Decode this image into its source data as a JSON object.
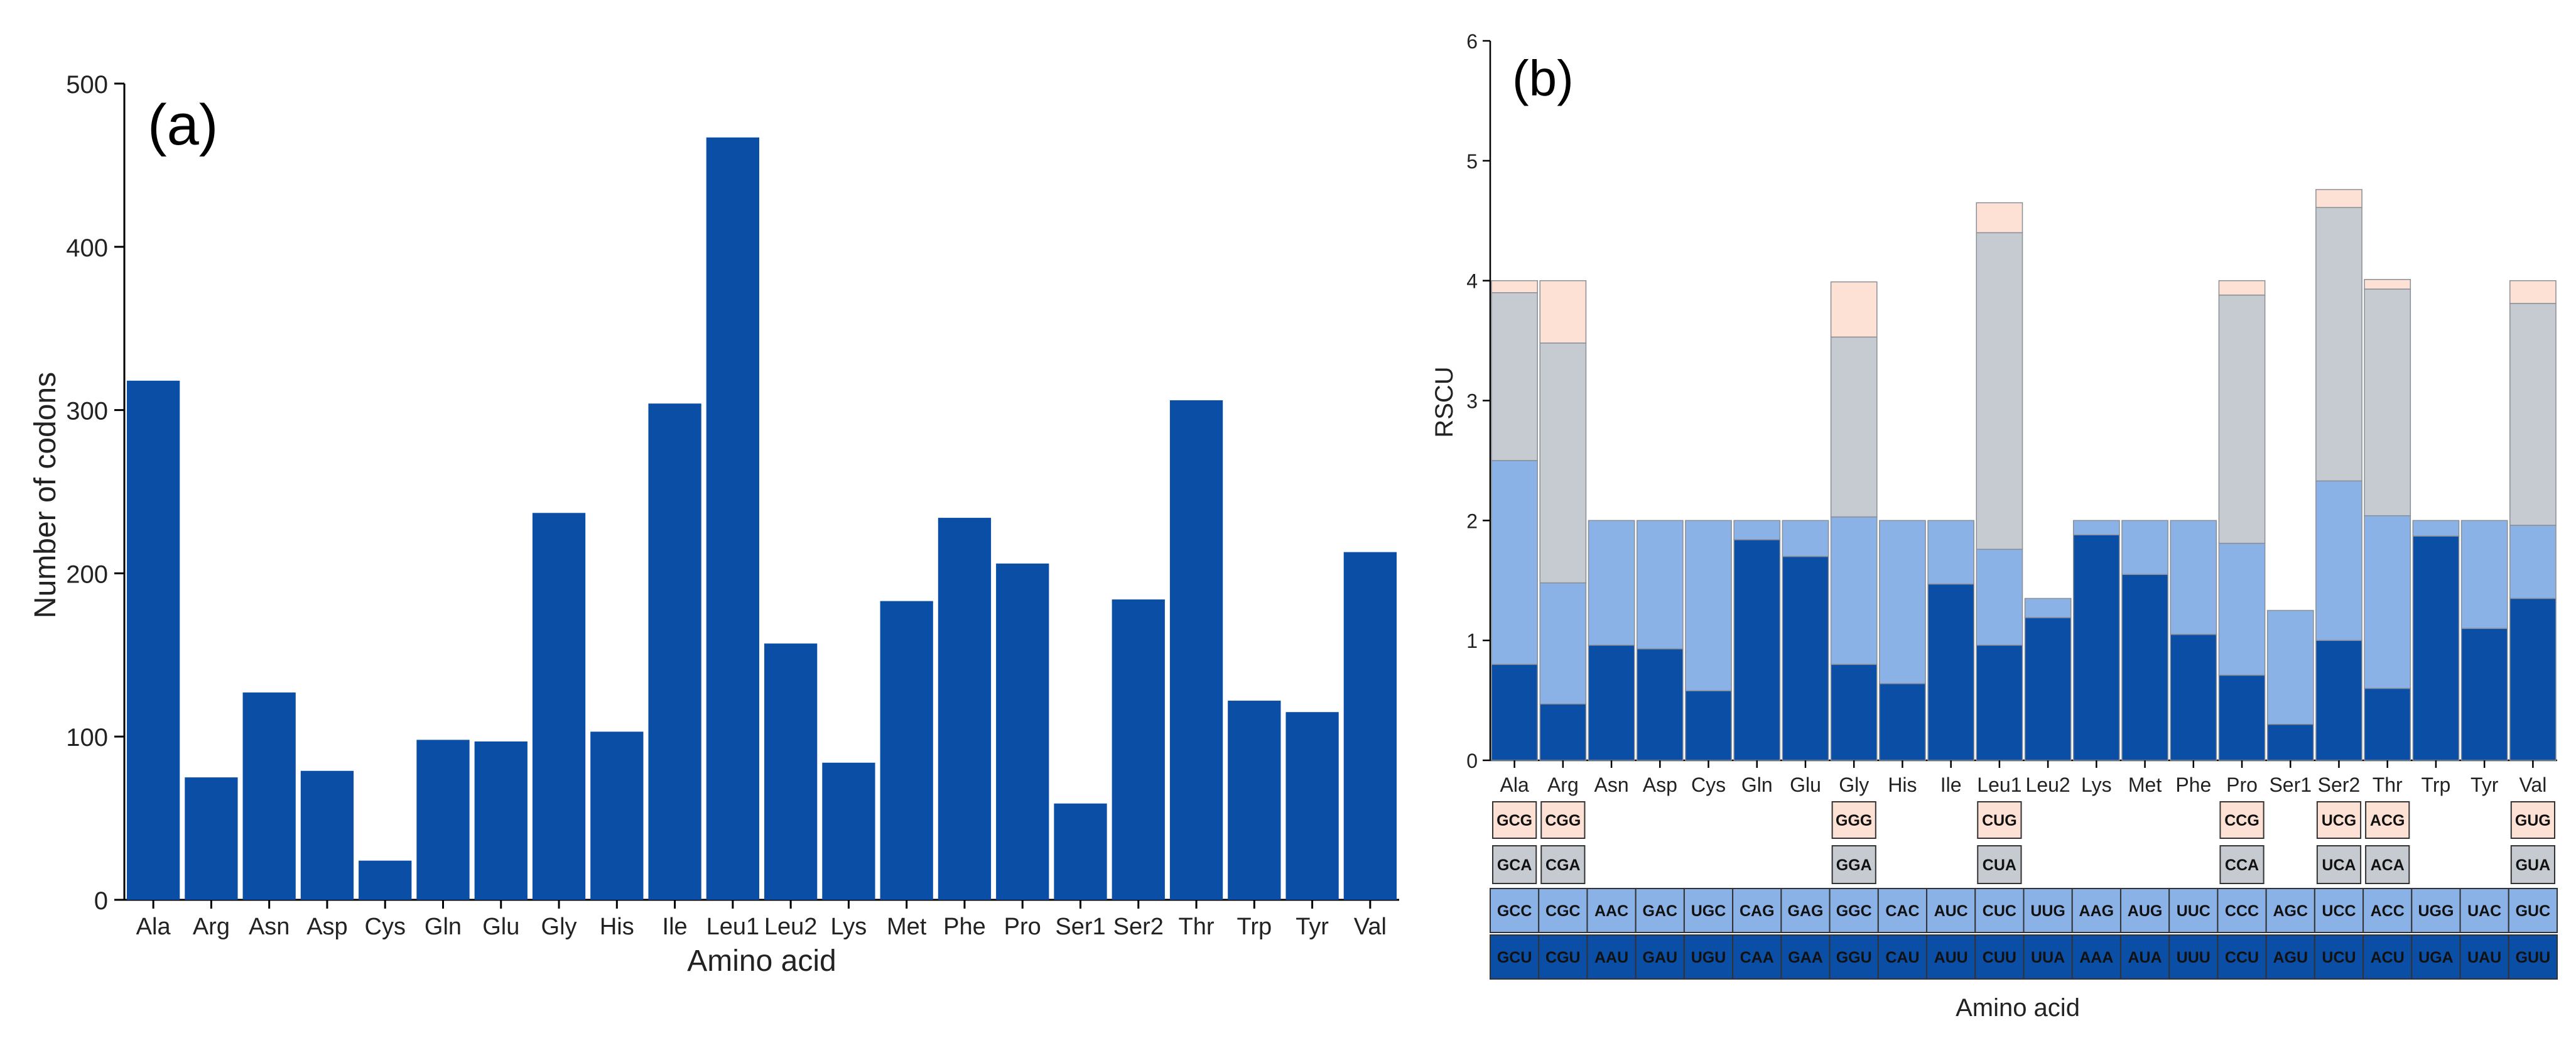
{
  "chart_data": [
    {
      "panel_label": "(a)",
      "type": "bar",
      "title": "",
      "xlabel": "Amino acid",
      "ylabel": "Number of codons",
      "ylim": [
        0,
        500
      ],
      "yticks": [
        0,
        100,
        200,
        300,
        400,
        500
      ],
      "categories": [
        "Ala",
        "Arg",
        "Asn",
        "Asp",
        "Cys",
        "Gln",
        "Glu",
        "Gly",
        "His",
        "Ile",
        "Leu1",
        "Leu2",
        "Lys",
        "Met",
        "Phe",
        "Pro",
        "Ser1",
        "Ser2",
        "Thr",
        "Trp",
        "Tyr",
        "Val"
      ],
      "values": [
        318,
        75,
        127,
        79,
        24,
        98,
        97,
        237,
        103,
        304,
        467,
        157,
        84,
        183,
        234,
        206,
        59,
        184,
        306,
        122,
        115,
        213
      ],
      "color": "#0a4ea6"
    },
    {
      "panel_label": "(b)",
      "type": "bar",
      "stacked": true,
      "xlabel": "Amino acid",
      "ylabel": "RSCU",
      "ylim": [
        0,
        6
      ],
      "yticks": [
        0,
        1,
        2,
        3,
        4,
        5,
        6
      ],
      "categories": [
        "Ala",
        "Arg",
        "Asn",
        "Asp",
        "Cys",
        "Gln",
        "Glu",
        "Gly",
        "His",
        "Ile",
        "Leu1",
        "Leu2",
        "Lys",
        "Met",
        "Phe",
        "Pro",
        "Ser1",
        "Ser2",
        "Thr",
        "Trp",
        "Tyr",
        "Val"
      ],
      "colors": [
        "#0a4ea6",
        "#8bb2e6",
        "#c6cbd1",
        "#fde1d4"
      ],
      "stacks": [
        [
          {
            "codon": "GCU",
            "value": 0.8
          },
          {
            "codon": "GCC",
            "value": 1.7
          },
          {
            "codon": "GCA",
            "value": 1.4
          },
          {
            "codon": "GCG",
            "value": 0.1
          }
        ],
        [
          {
            "codon": "CGU",
            "value": 0.47
          },
          {
            "codon": "CGC",
            "value": 1.01
          },
          {
            "codon": "CGA",
            "value": 2.0
          },
          {
            "codon": "CGG",
            "value": 0.52
          }
        ],
        [
          {
            "codon": "AAU",
            "value": 0.96
          },
          {
            "codon": "AAC",
            "value": 1.04
          }
        ],
        [
          {
            "codon": "GAU",
            "value": 0.93
          },
          {
            "codon": "GAC",
            "value": 1.07
          }
        ],
        [
          {
            "codon": "UGU",
            "value": 0.58
          },
          {
            "codon": "UGC",
            "value": 1.42
          }
        ],
        [
          {
            "codon": "CAA",
            "value": 1.84
          },
          {
            "codon": "CAG",
            "value": 0.16
          }
        ],
        [
          {
            "codon": "GAA",
            "value": 1.7
          },
          {
            "codon": "GAG",
            "value": 0.3
          }
        ],
        [
          {
            "codon": "GGU",
            "value": 0.8
          },
          {
            "codon": "GGC",
            "value": 1.23
          },
          {
            "codon": "GGA",
            "value": 1.5
          },
          {
            "codon": "GGG",
            "value": 0.46
          }
        ],
        [
          {
            "codon": "CAU",
            "value": 0.64
          },
          {
            "codon": "CAC",
            "value": 1.36
          }
        ],
        [
          {
            "codon": "AUU",
            "value": 1.47
          },
          {
            "codon": "AUC",
            "value": 0.53
          }
        ],
        [
          {
            "codon": "CUU",
            "value": 0.96
          },
          {
            "codon": "CUC",
            "value": 0.8
          },
          {
            "codon": "CUA",
            "value": 2.64
          },
          {
            "codon": "CUG",
            "value": 0.25
          }
        ],
        [
          {
            "codon": "UUA",
            "value": 1.19
          },
          {
            "codon": "UUG",
            "value": 0.16
          }
        ],
        [
          {
            "codon": "AAA",
            "value": 1.88
          },
          {
            "codon": "AAG",
            "value": 0.12
          }
        ],
        [
          {
            "codon": "AUA",
            "value": 1.55
          },
          {
            "codon": "AUG",
            "value": 0.45
          }
        ],
        [
          {
            "codon": "UUU",
            "value": 1.05
          },
          {
            "codon": "UUC",
            "value": 0.95
          }
        ],
        [
          {
            "codon": "CCU",
            "value": 0.71
          },
          {
            "codon": "CCC",
            "value": 1.1
          },
          {
            "codon": "CCA",
            "value": 2.07
          },
          {
            "codon": "CCG",
            "value": 0.12
          }
        ],
        [
          {
            "codon": "AGU",
            "value": 0.3
          },
          {
            "codon": "AGC",
            "value": 0.95
          }
        ],
        [
          {
            "codon": "UCU",
            "value": 1.0
          },
          {
            "codon": "UCC",
            "value": 1.33
          },
          {
            "codon": "UCA",
            "value": 2.28
          },
          {
            "codon": "UCG",
            "value": 0.15
          }
        ],
        [
          {
            "codon": "ACU",
            "value": 0.6
          },
          {
            "codon": "ACC",
            "value": 1.44
          },
          {
            "codon": "ACA",
            "value": 1.89
          },
          {
            "codon": "ACG",
            "value": 0.08
          }
        ],
        [
          {
            "codon": "UGA",
            "value": 1.87
          },
          {
            "codon": "UGG",
            "value": 0.13
          }
        ],
        [
          {
            "codon": "UAU",
            "value": 1.1
          },
          {
            "codon": "UAC",
            "value": 0.9
          }
        ],
        [
          {
            "codon": "GUU",
            "value": 1.35
          },
          {
            "codon": "GUC",
            "value": 0.61
          },
          {
            "codon": "GUA",
            "value": 1.85
          },
          {
            "codon": "GUG",
            "value": 0.19
          }
        ]
      ]
    }
  ]
}
